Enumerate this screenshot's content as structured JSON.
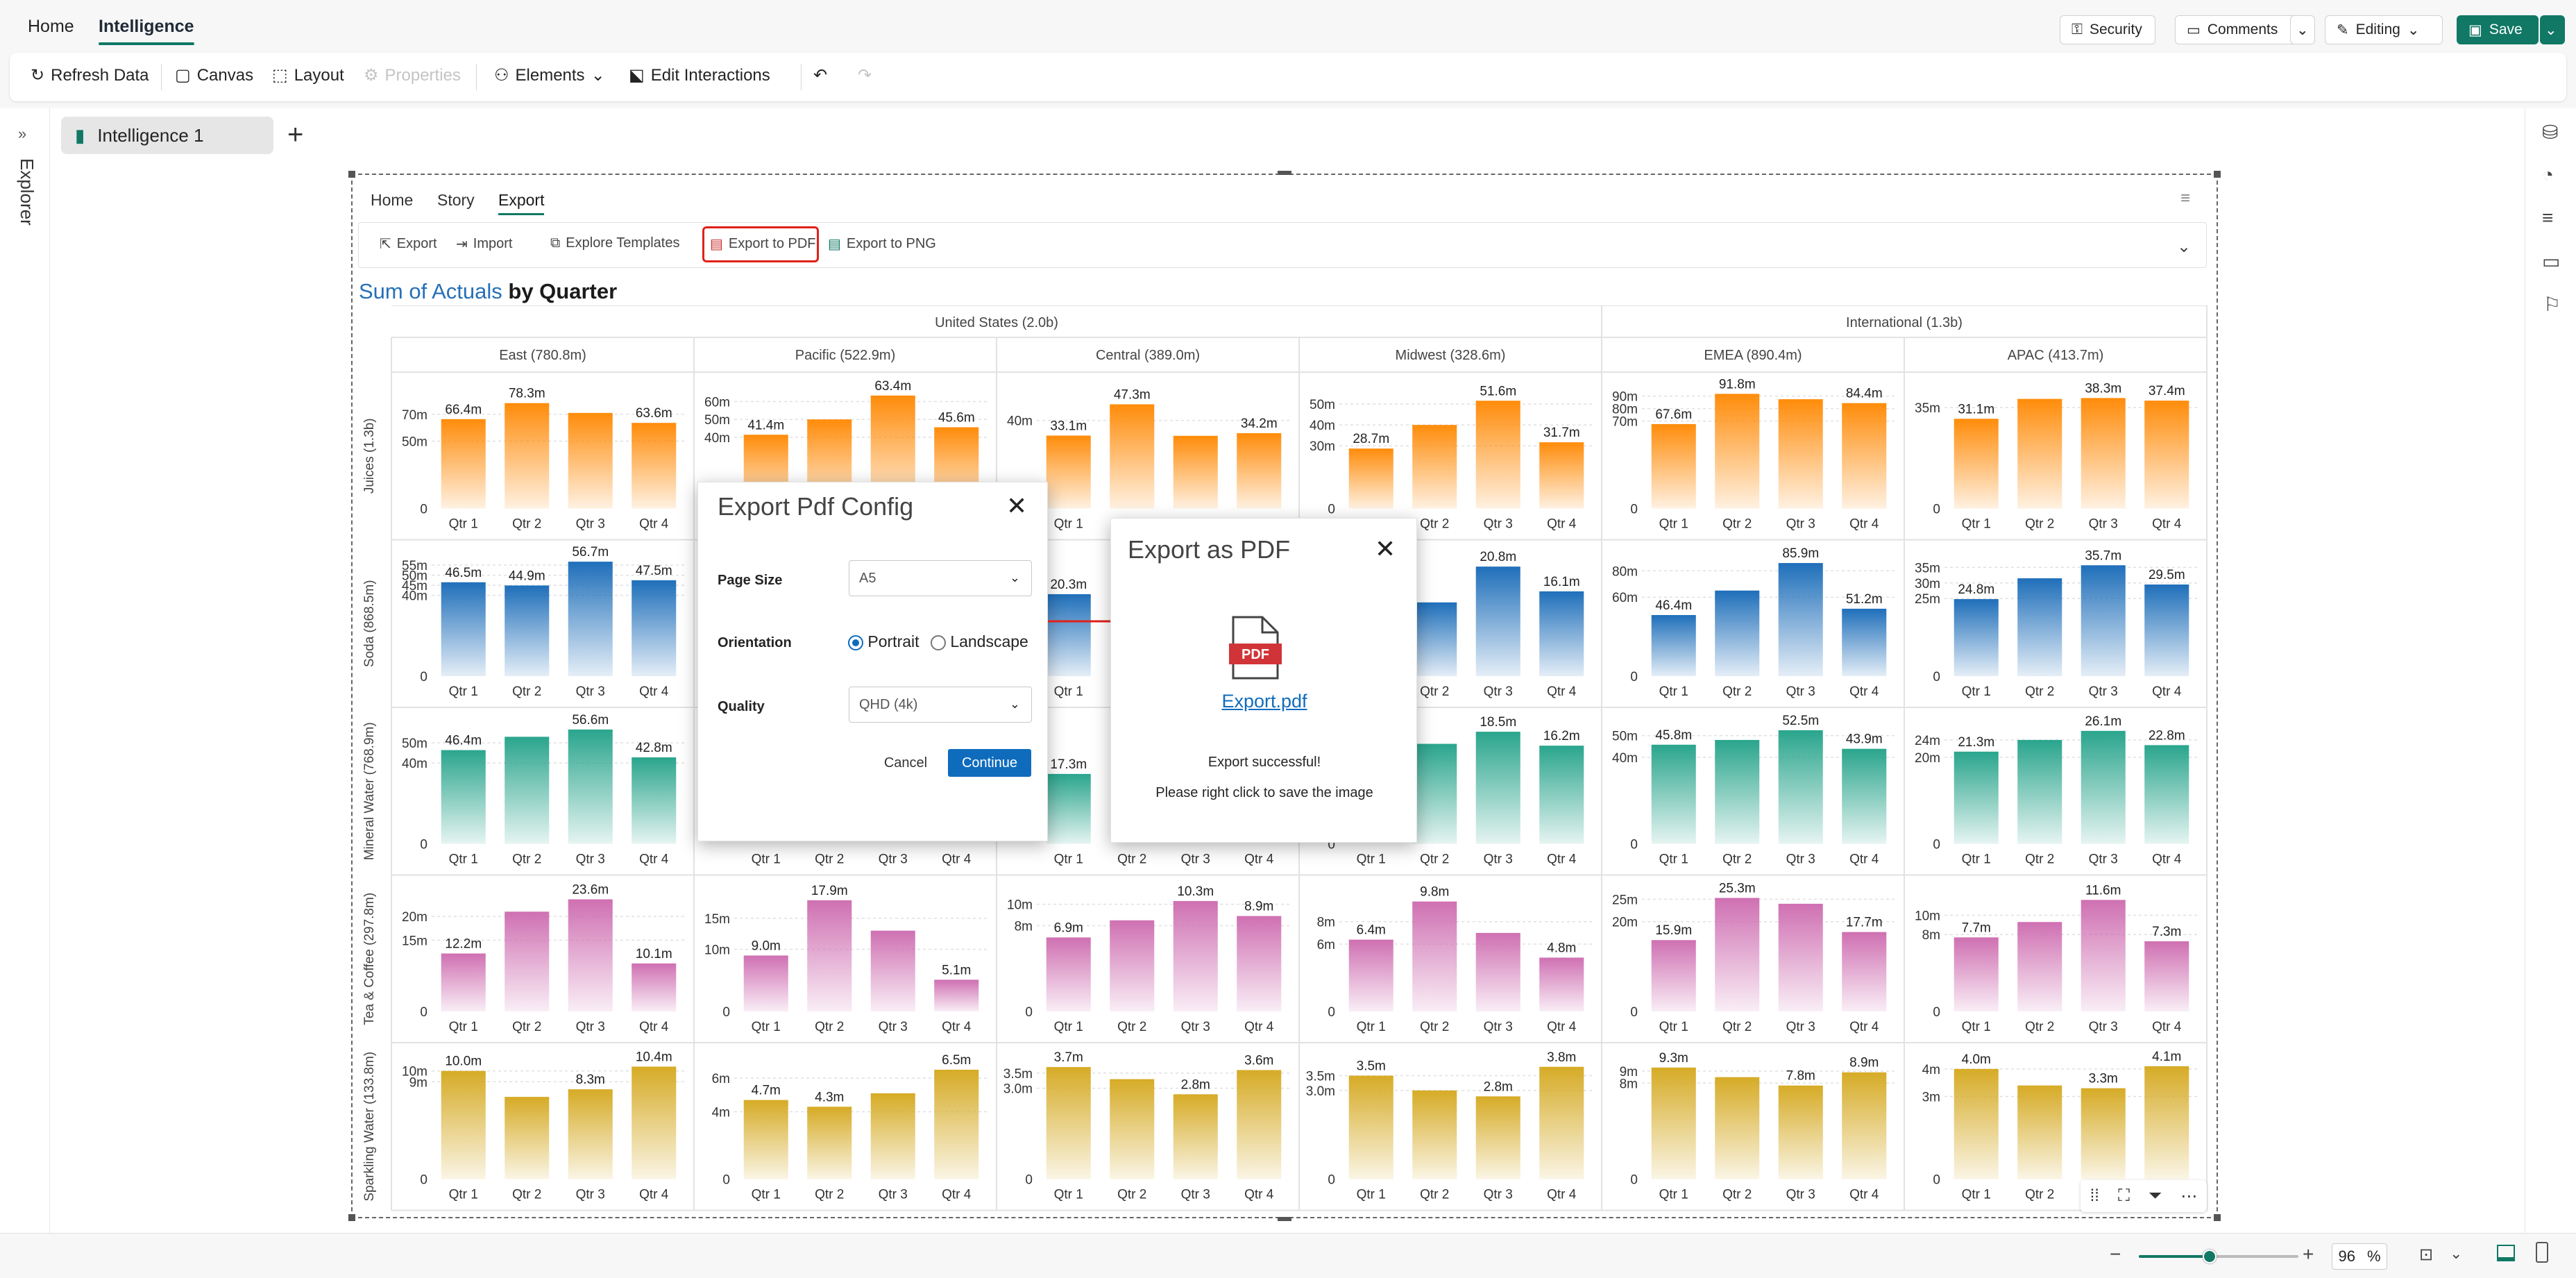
{
  "app": {
    "tabs": [
      "Home",
      "Intelligence"
    ],
    "active_tab": "Intelligence",
    "security_label": "Security",
    "comments_label": "Comments",
    "editing_label": "Editing",
    "save_label": "Save",
    "accent_color": "#117865"
  },
  "toolbar": {
    "refresh_label": "Refresh Data",
    "canvas_label": "Canvas",
    "layout_label": "Layout",
    "properties_label": "Properties",
    "elements_label": "Elements",
    "edit_interactions_label": "Edit Interactions"
  },
  "sidebar": {
    "explorer_label": "Explorer"
  },
  "document": {
    "tab_label": "Intelligence 1"
  },
  "report": {
    "tabs": [
      "Home",
      "Story",
      "Export"
    ],
    "active_tab": "Export",
    "ribbon": {
      "export": "Export",
      "import": "Import",
      "explore_templates": "Explore Templates",
      "export_pdf": "Export to PDF",
      "export_png": "Export to PNG"
    },
    "title_measure": "Sum of Actuals",
    "title_rest": " by Quarter"
  },
  "chart_data": {
    "type": "bar",
    "title": "Sum of Actuals by Quarter",
    "categories": [
      "Qtr 1",
      "Qtr 2",
      "Qtr 3",
      "Qtr 4"
    ],
    "column_groups": [
      {
        "name": "United States (2.0b)",
        "columns": [
          "East (780.8m)",
          "Pacific (522.9m)",
          "Central (389.0m)",
          "Midwest (328.6m)"
        ]
      },
      {
        "name": "International (1.3b)",
        "columns": [
          "EMEA (890.4m)",
          "APAC (413.7m)"
        ]
      }
    ],
    "rows": [
      {
        "name": "Juices (1.3b)",
        "color": "#ff8c0a",
        "cells": [
          {
            "ticks": [
              "0",
              "50m",
              "70m"
            ],
            "ylim": [
              0,
              90
            ],
            "values": [
              66.4,
              78.3,
              71,
              63.6
            ],
            "labels": [
              "66.4m",
              "78.3m",
              "",
              "63.6m"
            ]
          },
          {
            "ticks": [
              "0",
              "40m",
              "50m",
              "60m"
            ],
            "ylim": [
              0,
              68
            ],
            "values": [
              41.4,
              50,
              63.4,
              45.6
            ],
            "labels": [
              "41.4m",
              "",
              "63.4m",
              "45.6m"
            ]
          },
          {
            "ticks": [
              "0",
              "40m"
            ],
            "ylim": [
              0,
              55
            ],
            "values": [
              33.1,
              47.3,
              33,
              34.2
            ],
            "labels": [
              "33.1m",
              "47.3m",
              "",
              "34.2m"
            ]
          },
          {
            "ticks": [
              "0",
              "30m",
              "40m",
              "50m"
            ],
            "ylim": [
              0,
              58
            ],
            "values": [
              28.7,
              40,
              51.6,
              31.7
            ],
            "labels": [
              "28.7m",
              "",
              "51.6m",
              "31.7m"
            ]
          },
          {
            "ticks": [
              "0",
              "70m",
              "80m",
              "90m"
            ],
            "ylim": [
              0,
              97
            ],
            "values": [
              67.6,
              91.8,
              87.5,
              84.4
            ],
            "labels": [
              "67.6m",
              "91.8m",
              "",
              "84.4m"
            ]
          },
          {
            "ticks": [
              "0",
              "35m"
            ],
            "ylim": [
              0,
              42
            ],
            "values": [
              31.1,
              38,
              38.3,
              37.4
            ],
            "labels": [
              "31.1m",
              "",
              "38.3m",
              "37.4m"
            ]
          }
        ]
      },
      {
        "name": "Soda (868.5m)",
        "color": "#1f6fba",
        "cells": [
          {
            "ticks": [
              "0",
              "40m",
              "45m",
              "50m",
              "55m"
            ],
            "ylim": [
              0,
              60
            ],
            "values": [
              46.5,
              44.9,
              56.7,
              47.5
            ],
            "labels": [
              "46.5m",
              "44.9m",
              "56.7m",
              "47.5m"
            ]
          },
          {
            "ticks": [],
            "ylim": [
              0,
              30
            ],
            "values": [
              0,
              0,
              0,
              0
            ],
            "labels": [
              "",
              "",
              "",
              ""
            ]
          },
          {
            "ticks": [],
            "ylim": [
              0,
              30
            ],
            "values": [
              20.3,
              0,
              0,
              0
            ],
            "labels": [
              "20.3m",
              "",
              "",
              ""
            ]
          },
          {
            "ticks": [],
            "ylim": [
              0,
              23
            ],
            "values": [
              0,
              14,
              20.8,
              16.1
            ],
            "labels": [
              "",
              "",
              "20.8m",
              "16.1m"
            ]
          },
          {
            "ticks": [
              "0",
              "60m",
              "80m"
            ],
            "ylim": [
              0,
              92
            ],
            "values": [
              46.4,
              65,
              85.9,
              51.2
            ],
            "labels": [
              "46.4m",
              "",
              "85.9m",
              "51.2m"
            ]
          },
          {
            "ticks": [
              "0",
              "25m",
              "30m",
              "35m"
            ],
            "ylim": [
              0,
              39
            ],
            "values": [
              24.8,
              31.5,
              35.7,
              29.5
            ],
            "labels": [
              "24.8m",
              "",
              "35.7m",
              "29.5m"
            ]
          }
        ]
      },
      {
        "name": "Mineral Water (768.9m)",
        "color": "#2aa58d",
        "cells": [
          {
            "ticks": [
              "0",
              "40m",
              "50m"
            ],
            "ylim": [
              0,
              60
            ],
            "values": [
              46.4,
              53,
              56.6,
              42.8
            ],
            "labels": [
              "46.4m",
              "",
              "56.6m",
              "42.8m"
            ]
          },
          {
            "ticks": [],
            "ylim": [
              0,
              30
            ],
            "values": [
              0,
              0,
              0,
              0
            ],
            "labels": [
              "",
              "",
              "",
              ""
            ]
          },
          {
            "ticks": [],
            "ylim": [
              0,
              30
            ],
            "values": [
              17.3,
              0,
              0,
              0
            ],
            "labels": [
              "17.3m",
              "",
              "",
              ""
            ]
          },
          {
            "ticks": [
              "0"
            ],
            "ylim": [
              0,
              20
            ],
            "values": [
              0,
              16.5,
              18.5,
              16.2
            ],
            "labels": [
              "",
              "",
              "18.5m",
              "16.2m"
            ]
          },
          {
            "ticks": [
              "0",
              "40m",
              "50m"
            ],
            "ylim": [
              0,
              56
            ],
            "values": [
              45.8,
              48,
              52.5,
              43.9
            ],
            "labels": [
              "45.8m",
              "",
              "52.5m",
              "43.9m"
            ]
          },
          {
            "ticks": [
              "0",
              "20m",
              "24m"
            ],
            "ylim": [
              0,
              28
            ],
            "values": [
              21.3,
              24,
              26.1,
              22.8
            ],
            "labels": [
              "21.3m",
              "",
              "26.1m",
              "22.8m"
            ]
          }
        ]
      },
      {
        "name": "Tea & Coffee (297.8m)",
        "color": "#cf70b2",
        "cells": [
          {
            "ticks": [
              "0",
              "15m",
              "20m"
            ],
            "ylim": [
              0,
              25.5
            ],
            "values": [
              12.2,
              21,
              23.6,
              10.1
            ],
            "labels": [
              "12.2m",
              "",
              "23.6m",
              "10.1m"
            ]
          },
          {
            "ticks": [
              "0",
              "10m",
              "15m"
            ],
            "ylim": [
              0,
              19.5
            ],
            "values": [
              9.0,
              17.9,
              13,
              5.1
            ],
            "labels": [
              "9.0m",
              "17.9m",
              "",
              "5.1m"
            ]
          },
          {
            "ticks": [
              "0",
              "8m",
              "10m"
            ],
            "ylim": [
              0,
              11.3
            ],
            "values": [
              6.9,
              8.5,
              10.3,
              8.9
            ],
            "labels": [
              "6.9m",
              "",
              "10.3m",
              "8.9m"
            ]
          },
          {
            "ticks": [
              "0",
              "6m",
              "8m"
            ],
            "ylim": [
              0,
              10.8
            ],
            "values": [
              6.4,
              9.8,
              7,
              4.8
            ],
            "labels": [
              "6.4m",
              "9.8m",
              "",
              "4.8m"
            ]
          },
          {
            "ticks": [
              "0",
              "20m",
              "25m"
            ],
            "ylim": [
              0,
              27
            ],
            "values": [
              15.9,
              25.3,
              24,
              17.7
            ],
            "labels": [
              "15.9m",
              "25.3m",
              "",
              "17.7m"
            ]
          },
          {
            "ticks": [
              "0",
              "8m",
              "10m"
            ],
            "ylim": [
              0,
              12.6
            ],
            "values": [
              7.7,
              9.3,
              11.6,
              7.3
            ],
            "labels": [
              "7.7m",
              "",
              "11.6m",
              "7.3m"
            ]
          }
        ]
      },
      {
        "name": "Sparkling Water (133.8m)",
        "color": "#d6ab26",
        "cells": [
          {
            "ticks": [
              "0",
              "9m",
              "10m"
            ],
            "ylim": [
              0,
              11.2
            ],
            "values": [
              10.0,
              7.6,
              8.3,
              10.4
            ],
            "labels": [
              "10.0m",
              "",
              "8.3m",
              "10.4m"
            ]
          },
          {
            "ticks": [
              "0",
              "4m",
              "6m"
            ],
            "ylim": [
              0,
              7.2
            ],
            "values": [
              4.7,
              4.3,
              5.1,
              6.5
            ],
            "labels": [
              "4.7m",
              "4.3m",
              "",
              "6.5m"
            ]
          },
          {
            "ticks": [
              "0",
              "3.0m",
              "3.5m"
            ],
            "ylim": [
              0,
              4.0
            ],
            "values": [
              3.7,
              3.3,
              2.8,
              3.6
            ],
            "labels": [
              "3.7m",
              "",
              "2.8m",
              "3.6m"
            ]
          },
          {
            "ticks": [
              "0",
              "3.0m",
              "3.5m"
            ],
            "ylim": [
              0,
              4.1
            ],
            "values": [
              3.5,
              3.0,
              2.8,
              3.8
            ],
            "labels": [
              "3.5m",
              "",
              "2.8m",
              "3.8m"
            ]
          },
          {
            "ticks": [
              "0",
              "8m",
              "9m"
            ],
            "ylim": [
              0,
              10.1
            ],
            "values": [
              9.3,
              8.5,
              7.8,
              8.9
            ],
            "labels": [
              "9.3m",
              "",
              "7.8m",
              "8.9m"
            ]
          },
          {
            "ticks": [
              "0",
              "3m",
              "4m"
            ],
            "ylim": [
              0,
              4.4
            ],
            "values": [
              4.0,
              3.4,
              3.3,
              4.1
            ],
            "labels": [
              "4.0m",
              "",
              "3.3m",
              "4.1m"
            ]
          }
        ]
      }
    ]
  },
  "pdf_config": {
    "title": "Export Pdf Config",
    "page_size_label": "Page Size",
    "page_size_value": "A5",
    "orientation_label": "Orientation",
    "portrait_label": "Portrait",
    "landscape_label": "Landscape",
    "orientation_selected": "Portrait",
    "quality_label": "Quality",
    "quality_value": "QHD (4k)",
    "cancel_label": "Cancel",
    "continue_label": "Continue"
  },
  "export_dialog": {
    "title": "Export as PDF",
    "icon_text": "PDF",
    "file_link": "Export.pdf",
    "message1": "Export successful!",
    "message2": "Please right click to save the image"
  },
  "statusbar": {
    "zoom_value": "96",
    "zoom_unit": "%"
  }
}
